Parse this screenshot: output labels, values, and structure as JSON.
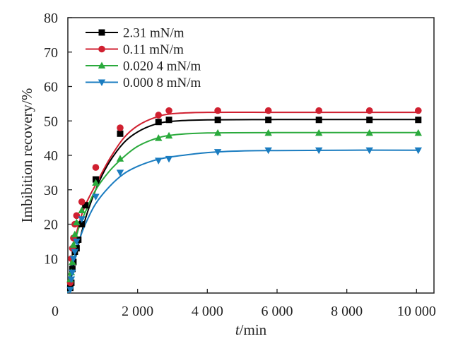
{
  "chart_data": {
    "type": "line",
    "xlabel_italic": "t",
    "xlabel_unit": "/min",
    "ylabel": "Imbibition recovery/%",
    "xlim": [
      0,
      10500
    ],
    "ylim": [
      0,
      80
    ],
    "xticks": [
      0,
      2000,
      4000,
      6000,
      8000,
      10000
    ],
    "xtick_labels": [
      "0",
      "2 000",
      "4 000",
      "6 000",
      "8 000",
      "10 000"
    ],
    "yticks": [
      10,
      20,
      30,
      40,
      50,
      60,
      70,
      80
    ],
    "ytick_labels": [
      "10",
      "20",
      "30",
      "40",
      "50",
      "60",
      "70",
      "80"
    ],
    "grid": false,
    "legend_position": "top-left",
    "series": [
      {
        "name": "2.31 mN/m",
        "color": "#000000",
        "marker": "square",
        "points": [
          [
            70,
            1.5
          ],
          [
            100,
            3
          ],
          [
            130,
            7
          ],
          [
            160,
            9
          ],
          [
            200,
            12
          ],
          [
            250,
            13
          ],
          [
            300,
            15.5
          ],
          [
            400,
            20
          ],
          [
            500,
            25.5
          ],
          [
            800,
            33
          ],
          [
            1500,
            46.3
          ],
          [
            2600,
            49.7
          ],
          [
            2900,
            50.3
          ],
          [
            4300,
            50.3
          ],
          [
            5750,
            50.3
          ],
          [
            7200,
            50.3
          ],
          [
            8650,
            50.3
          ],
          [
            10050,
            50.3
          ]
        ],
        "fit": [
          [
            0,
            0
          ],
          [
            200,
            9.6
          ],
          [
            400,
            17.8
          ],
          [
            600,
            24.6
          ],
          [
            900,
            32.4
          ],
          [
            1200,
            38.2
          ],
          [
            1600,
            43.6
          ],
          [
            2000,
            46.8
          ],
          [
            2500,
            49
          ],
          [
            3000,
            49.9
          ],
          [
            4000,
            50.3
          ],
          [
            6000,
            50.4
          ],
          [
            8000,
            50.4
          ],
          [
            10050,
            50.4
          ]
        ]
      },
      {
        "name": "0.11 mN/m",
        "color": "#d02030",
        "marker": "circle",
        "points": [
          [
            70,
            3
          ],
          [
            100,
            10
          ],
          [
            130,
            13
          ],
          [
            160,
            16
          ],
          [
            200,
            20
          ],
          [
            250,
            22.5
          ],
          [
            400,
            26.5
          ],
          [
            800,
            36.5
          ],
          [
            1500,
            48
          ],
          [
            2600,
            51.7
          ],
          [
            2900,
            53
          ],
          [
            4300,
            53
          ],
          [
            5750,
            53
          ],
          [
            7200,
            53
          ],
          [
            8650,
            53
          ],
          [
            10050,
            53
          ]
        ],
        "fit": [
          [
            0,
            0
          ],
          [
            150,
            12.5
          ],
          [
            300,
            19.5
          ],
          [
            500,
            25.5
          ],
          [
            800,
            31.5
          ],
          [
            1200,
            39
          ],
          [
            1600,
            45
          ],
          [
            2000,
            48.6
          ],
          [
            2500,
            51
          ],
          [
            3000,
            52.1
          ],
          [
            4000,
            52.5
          ],
          [
            6000,
            52.5
          ],
          [
            8000,
            52.5
          ],
          [
            10050,
            52.5
          ]
        ]
      },
      {
        "name": "0.020 4 mN/m",
        "color": "#2aaa3c",
        "marker": "triangle-up",
        "points": [
          [
            70,
            4
          ],
          [
            100,
            6
          ],
          [
            130,
            9
          ],
          [
            160,
            14
          ],
          [
            200,
            17
          ],
          [
            250,
            20.5
          ],
          [
            400,
            24
          ],
          [
            800,
            32
          ],
          [
            1500,
            39
          ],
          [
            2600,
            45
          ],
          [
            2900,
            45.7
          ],
          [
            4300,
            46.5
          ],
          [
            5750,
            46.5
          ],
          [
            7200,
            46.5
          ],
          [
            8650,
            46.5
          ],
          [
            10050,
            46.5
          ]
        ],
        "fit": [
          [
            0,
            0
          ],
          [
            150,
            12
          ],
          [
            300,
            18.5
          ],
          [
            500,
            23.5
          ],
          [
            800,
            30
          ],
          [
            1200,
            35.5
          ],
          [
            1600,
            39.5
          ],
          [
            2000,
            42.6
          ],
          [
            2500,
            44.8
          ],
          [
            3000,
            45.9
          ],
          [
            4000,
            46.5
          ],
          [
            6000,
            46.6
          ],
          [
            8000,
            46.6
          ],
          [
            10050,
            46.6
          ]
        ]
      },
      {
        "name": "0.000 8 mN/m",
        "color": "#1a7cc0",
        "marker": "triangle-down",
        "points": [
          [
            70,
            1
          ],
          [
            100,
            4
          ],
          [
            130,
            6
          ],
          [
            160,
            10
          ],
          [
            200,
            12
          ],
          [
            250,
            15
          ],
          [
            400,
            21.5
          ],
          [
            800,
            28
          ],
          [
            1500,
            35
          ],
          [
            2600,
            38.5
          ],
          [
            2900,
            39
          ],
          [
            4300,
            41
          ],
          [
            5750,
            41.5
          ],
          [
            7200,
            41.5
          ],
          [
            8650,
            41.5
          ],
          [
            10050,
            41.5
          ]
        ],
        "fit": [
          [
            0,
            0
          ],
          [
            150,
            8.5
          ],
          [
            300,
            14.5
          ],
          [
            500,
            20
          ],
          [
            800,
            26
          ],
          [
            1200,
            31
          ],
          [
            1600,
            34.6
          ],
          [
            2000,
            36.8
          ],
          [
            2500,
            38.6
          ],
          [
            3000,
            39.6
          ],
          [
            4000,
            40.8
          ],
          [
            5000,
            41.3
          ],
          [
            6000,
            41.4
          ],
          [
            8000,
            41.5
          ],
          [
            10050,
            41.5
          ]
        ]
      }
    ]
  }
}
